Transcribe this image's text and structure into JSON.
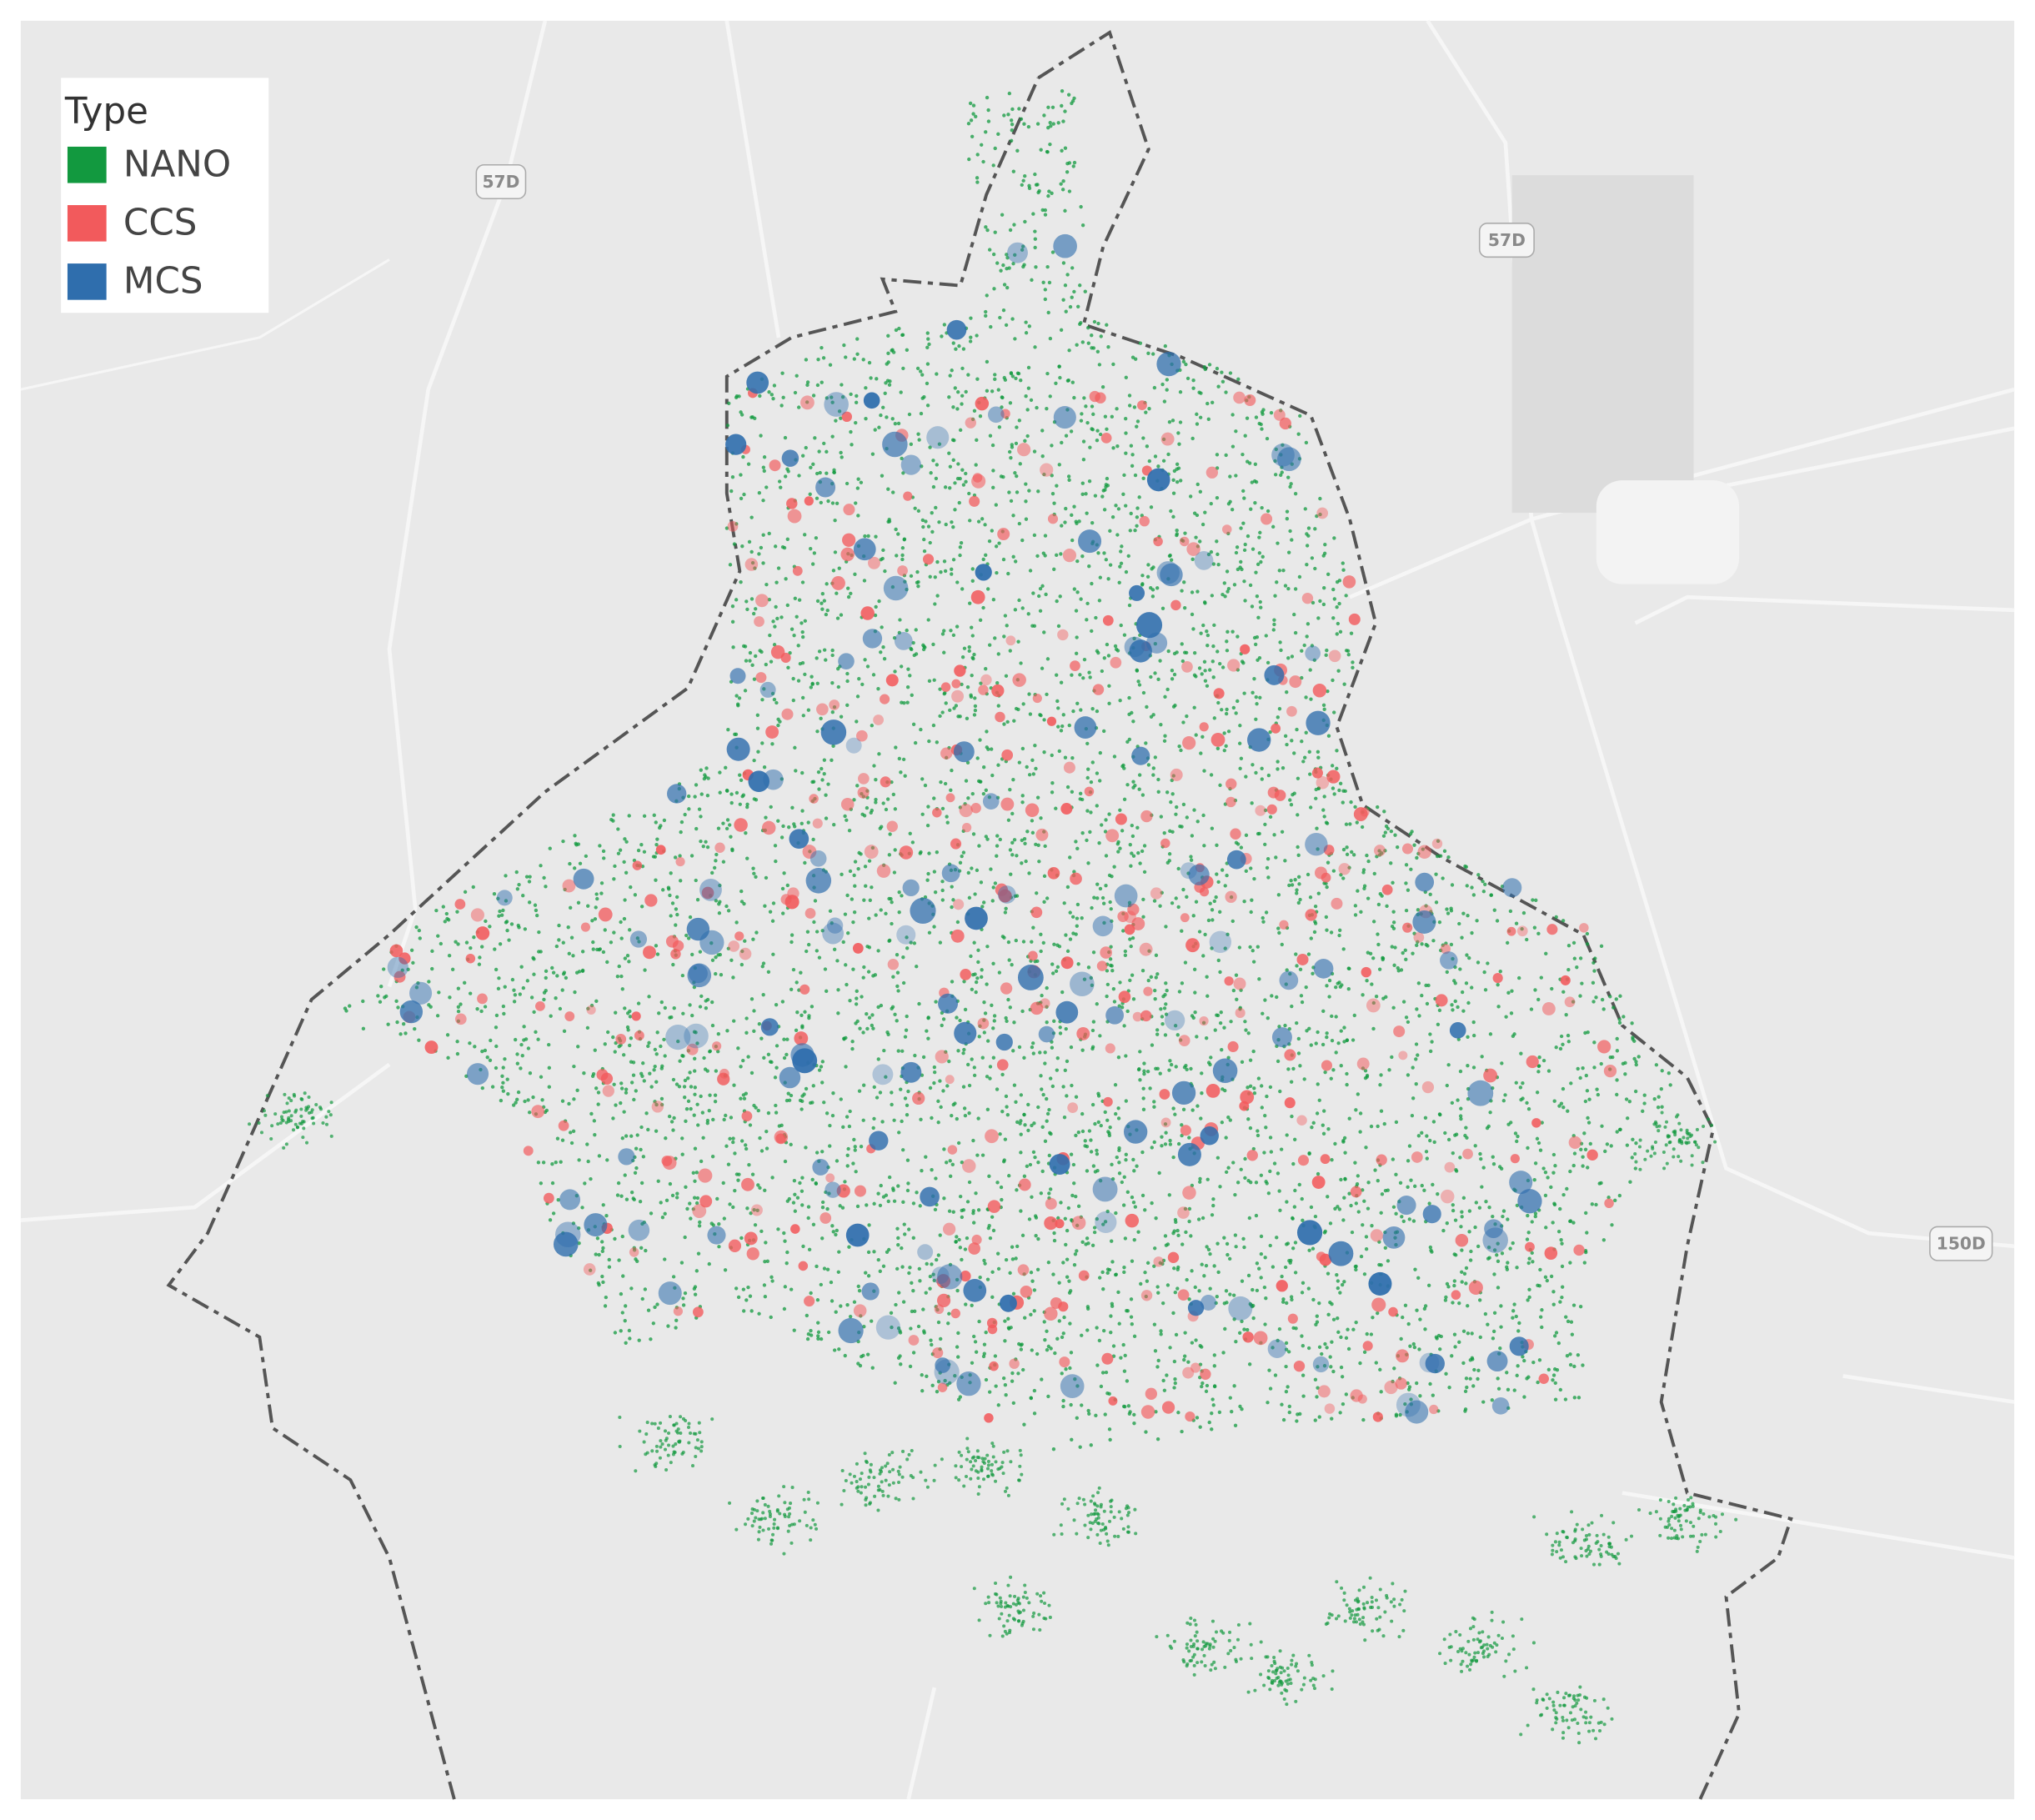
{
  "legend": {
    "title": "Type",
    "items": [
      {
        "label": "NANO",
        "color": "#12993f"
      },
      {
        "label": "CCS",
        "color": "#f25a5c"
      },
      {
        "label": "MCS",
        "color": "#2f6ead"
      }
    ]
  },
  "road_labels": [
    "57D",
    "57D",
    "150D"
  ]
}
